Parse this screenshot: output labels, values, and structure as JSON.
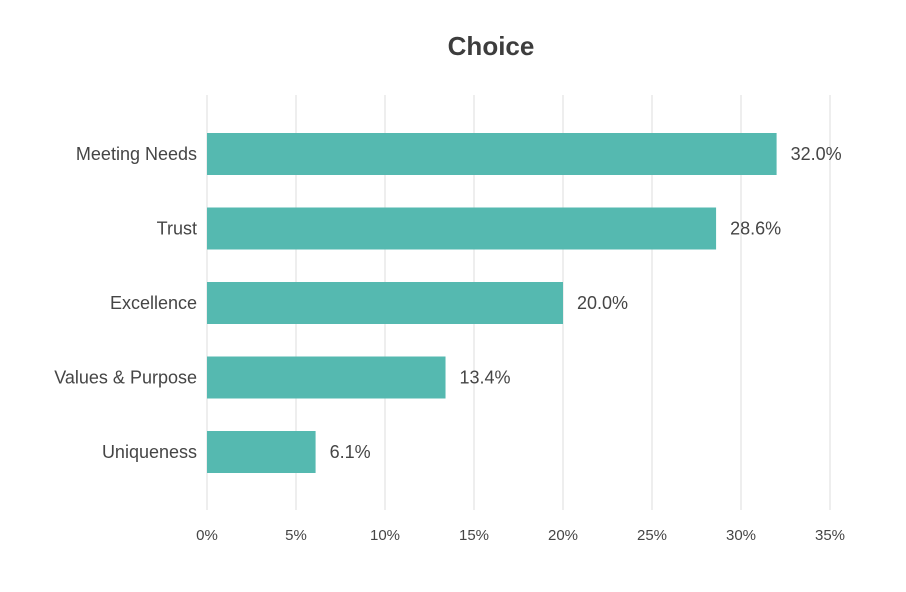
{
  "chart_data": {
    "type": "bar",
    "orientation": "horizontal",
    "title": "Choice",
    "xlabel": "",
    "ylabel": "",
    "categories": [
      "Meeting Needs",
      "Trust",
      "Excellence",
      "Values & Purpose",
      "Uniqueness"
    ],
    "values": [
      32.0,
      28.6,
      20.0,
      13.4,
      6.1
    ],
    "value_labels": [
      "32.0%",
      "28.6%",
      "20.0%",
      "13.4%",
      "6.1%"
    ],
    "xlim": [
      0,
      35
    ],
    "x_ticks": [
      0,
      5,
      10,
      15,
      20,
      25,
      30,
      35
    ],
    "x_tick_labels": [
      "0%",
      "5%",
      "10%",
      "15%",
      "20%",
      "25%",
      "30%",
      "35%"
    ],
    "grid": "vertical",
    "legend": "none",
    "colors": {
      "bar": "#55b9b0",
      "grid": "#dedede",
      "text": "#454545",
      "title": "#3d3d3d"
    }
  }
}
